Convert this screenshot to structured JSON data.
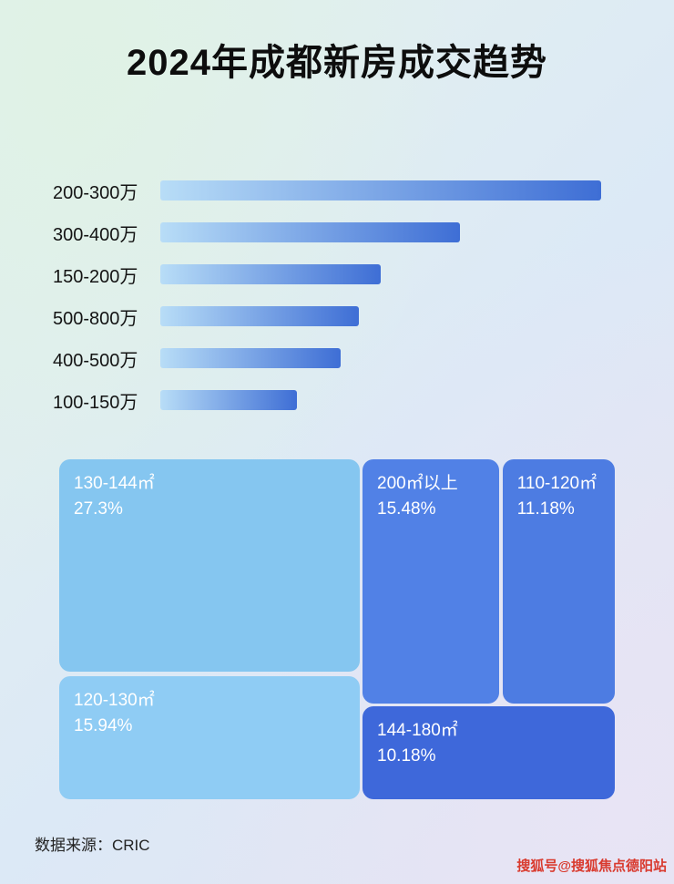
{
  "title": "2024年成都新房成交趋势",
  "chart_data": [
    {
      "type": "bar",
      "orientation": "horizontal",
      "categories": [
        "200-300万",
        "300-400万",
        "150-200万",
        "500-800万",
        "400-500万",
        "100-150万"
      ],
      "values": [
        100,
        68,
        50,
        45,
        41,
        31
      ],
      "value_note": "relative bar lengths in percent of longest bar; no numeric axis shown in image",
      "bar_gradient": {
        "start": "#b8ddf7",
        "end": "#3e6ed5"
      }
    },
    {
      "type": "treemap",
      "items": [
        {
          "label": "130-144㎡",
          "value": "27.3%",
          "color": "#85c6f0"
        },
        {
          "label": "120-130㎡",
          "value": "15.94%",
          "color": "#8fccf4"
        },
        {
          "label": "200㎡以上",
          "value": "15.48%",
          "color": "#5181e6"
        },
        {
          "label": "110-120㎡",
          "value": "11.18%",
          "color": "#4d7ce2"
        },
        {
          "label": "144-180㎡",
          "value": "10.18%",
          "color": "#3e68da"
        }
      ]
    }
  ],
  "footer": {
    "source": "数据来源：CRIC"
  },
  "watermark": {
    "text": "搜狐号@搜狐焦点德阳站",
    "color": "#d93a2e"
  }
}
